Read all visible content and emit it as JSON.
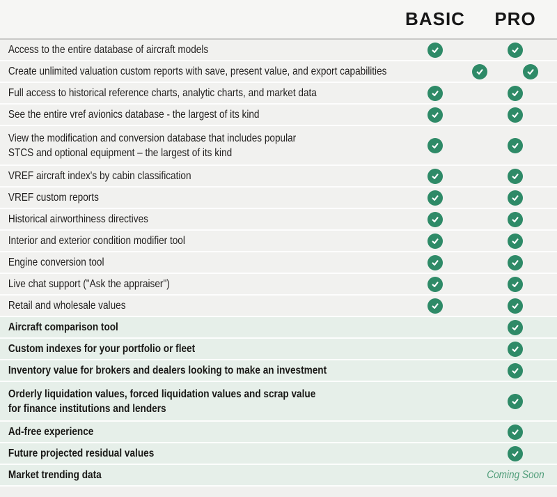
{
  "header": {
    "basic_label": "BASIC",
    "pro_label": "PRO"
  },
  "colors": {
    "check_green": "#2E8A67",
    "coming_soon_green": "#4E9C78",
    "basic_row_bg": "#F1F1EF",
    "pro_row_bg": "#E6EFE9",
    "header_text": "#161616"
  },
  "icons": {
    "check": "check-icon"
  },
  "features": [
    {
      "label": "Access to the entire database of aircraft models",
      "basic": "check",
      "pro": "check",
      "section": "basic"
    },
    {
      "label": "Create unlimited valuation custom reports with save, present value, and export capabilities",
      "basic": "check",
      "pro": "check",
      "section": "basic"
    },
    {
      "label": "Full access to historical reference charts, analytic charts, and market data",
      "basic": "check",
      "pro": "check",
      "section": "basic"
    },
    {
      "label": "See the entire vref avionics database - the largest of its kind",
      "basic": "check",
      "pro": "check",
      "section": "basic"
    },
    {
      "label": "View the modification and conversion database that includes popular\nSTCS and optional equipment – the largest of its kind",
      "basic": "check",
      "pro": "check",
      "section": "basic"
    },
    {
      "label": "VREF aircraft index's by cabin classification",
      "basic": "check",
      "pro": "check",
      "section": "basic"
    },
    {
      "label": "VREF custom reports",
      "basic": "check",
      "pro": "check",
      "section": "basic"
    },
    {
      "label": "Historical airworthiness directives",
      "basic": "check",
      "pro": "check",
      "section": "basic"
    },
    {
      "label": "Interior and exterior condition modifier tool",
      "basic": "check",
      "pro": "check",
      "section": "basic"
    },
    {
      "label": "Engine conversion tool",
      "basic": "check",
      "pro": "check",
      "section": "basic"
    },
    {
      "label": "Live chat support (\"Ask the appraiser\")",
      "basic": "check",
      "pro": "check",
      "section": "basic"
    },
    {
      "label": "Retail and wholesale values",
      "basic": "check",
      "pro": "check",
      "section": "basic"
    },
    {
      "label": "Aircraft comparison tool",
      "basic": "",
      "pro": "check",
      "section": "pro"
    },
    {
      "label": "Custom indexes for your portfolio or fleet",
      "basic": "",
      "pro": "check",
      "section": "pro"
    },
    {
      "label": "Inventory value for brokers and dealers looking to make an investment",
      "basic": "",
      "pro": "check",
      "section": "pro"
    },
    {
      "label": "Orderly liquidation values, forced liquidation values and scrap value\nfor finance institutions and lenders",
      "basic": "",
      "pro": "check",
      "section": "pro"
    },
    {
      "label": "Ad-free experience",
      "basic": "",
      "pro": "check",
      "section": "pro"
    },
    {
      "label": "Future projected residual values",
      "basic": "",
      "pro": "check",
      "section": "pro"
    },
    {
      "label": "Market trending data",
      "basic": "",
      "pro": "Coming Soon",
      "section": "pro"
    }
  ]
}
